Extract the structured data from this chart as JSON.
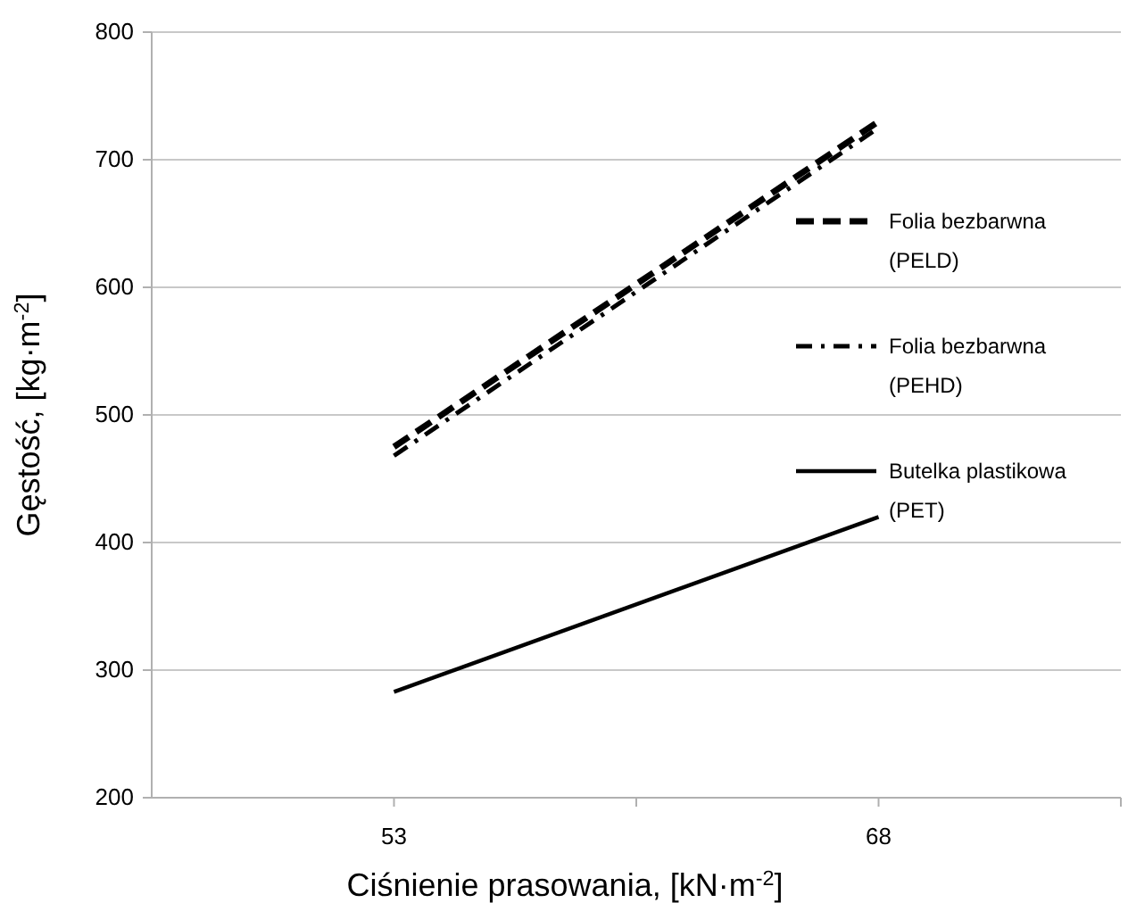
{
  "chart_data": {
    "type": "line",
    "xlabel": "Ciśnienie prasowania, [kN·m$^{-2}$]",
    "ylabel": "Gęstość, [kg·m$^{-2}$]",
    "x": [
      53,
      68
    ],
    "xlim": [
      45.5,
      75.5
    ],
    "xticks": [
      53,
      {
        "value": 60.5,
        "label": null
      },
      68,
      {
        "value": 75.5,
        "label": null
      }
    ],
    "ylim": [
      200,
      800
    ],
    "yticks": [
      200,
      300,
      400,
      500,
      600,
      700,
      800
    ],
    "grid": "y",
    "legend": "right",
    "marker": "none",
    "series": [
      {
        "name": "Folia bezbarwna (PELD)",
        "color": "#000000",
        "line_style": "dashed",
        "values": [
          475,
          730
        ]
      },
      {
        "name": "Folia bezbarwna (PEHD)",
        "color": "#000000",
        "line_style": "dashdot",
        "values": [
          468,
          725
        ]
      },
      {
        "name": "Butelka plastikowa (PET)",
        "color": "#000000",
        "line_style": "solid",
        "values": [
          283,
          420
        ]
      }
    ]
  }
}
